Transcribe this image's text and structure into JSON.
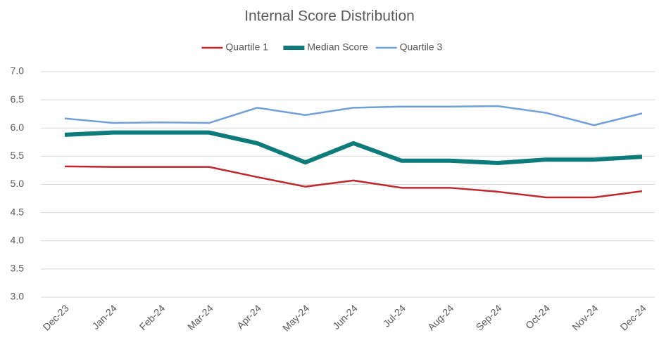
{
  "chart_data": {
    "type": "line",
    "title": "Internal Score Distribution",
    "categories": [
      "Dec-23",
      "Jan-24",
      "Feb-24",
      "Mar-24",
      "Apr-24",
      "May-24",
      "Jun-24",
      "Jul-24",
      "Aug-24",
      "Sep-24",
      "Oct-24",
      "Nov-24",
      "Dec-24"
    ],
    "series": [
      {
        "name": "Quartile 1",
        "color": "#c0272d",
        "width": 2.5,
        "values": [
          5.32,
          5.31,
          5.31,
          5.31,
          5.13,
          4.96,
          5.07,
          4.94,
          4.94,
          4.87,
          4.77,
          4.77,
          4.88
        ]
      },
      {
        "name": "Median Score",
        "color": "#0e7b7b",
        "width": 6,
        "values": [
          5.88,
          5.92,
          5.92,
          5.92,
          5.73,
          5.39,
          5.73,
          5.42,
          5.42,
          5.38,
          5.44,
          5.44,
          5.49
        ]
      },
      {
        "name": "Quartile 3",
        "color": "#6fa0d8",
        "width": 2.5,
        "values": [
          6.17,
          6.09,
          6.1,
          6.09,
          6.36,
          6.23,
          6.36,
          6.38,
          6.38,
          6.39,
          6.27,
          6.05,
          6.26
        ]
      }
    ],
    "ylim": [
      3,
      7
    ],
    "yticks": [
      {
        "value": 3,
        "label": "3.0"
      },
      3.5,
      {
        "value": 4,
        "label": "4.0"
      },
      4.5,
      {
        "value": 5,
        "label": "5.0"
      },
      5.5,
      {
        "value": 6,
        "label": "6.0"
      },
      6.5,
      {
        "value": 7,
        "label": "7.0"
      }
    ],
    "grid": true,
    "legend": "top"
  }
}
